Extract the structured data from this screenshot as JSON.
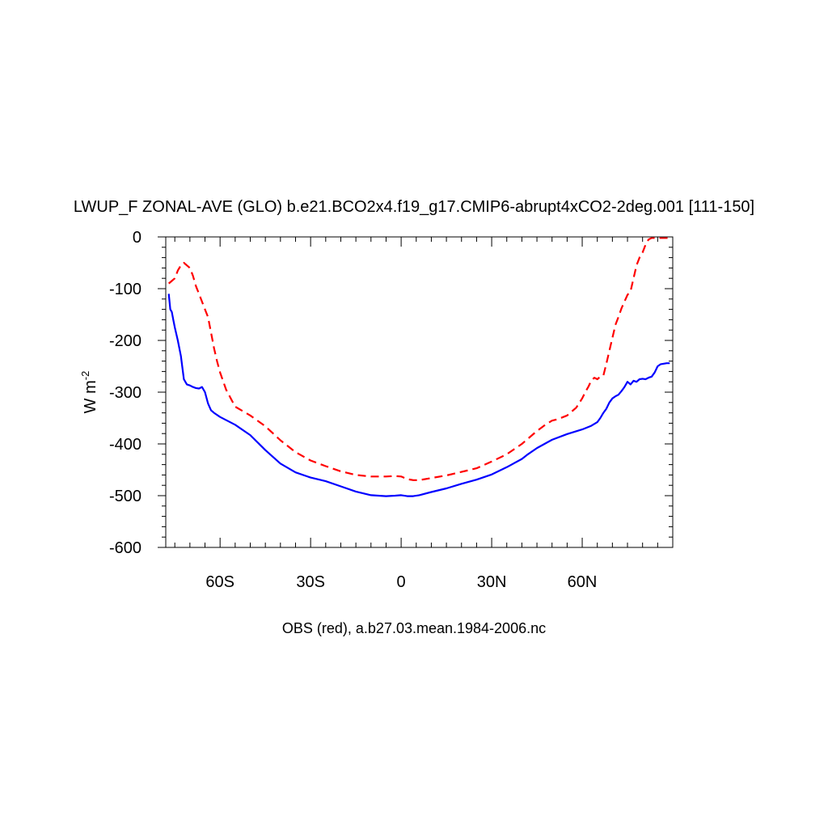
{
  "chart_data": {
    "type": "line",
    "title": "LWUP_F ZONAL-AVE (GLO) b.e21.BCO2x4.f19_g17.CMIP6-abrupt4xCO2-2deg.001 [111-150]",
    "ylabel": "W m",
    "ylabel_sup": "-2",
    "xlabel": "",
    "caption": "OBS (red), a.b27.03.mean.1984-2006.nc",
    "xlim": [
      -78,
      90
    ],
    "ylim": [
      -600,
      0
    ],
    "grid": false,
    "x_ticks": [
      {
        "value": -60,
        "label": "60S"
      },
      {
        "value": -30,
        "label": "30S"
      },
      {
        "value": 0,
        "label": "0"
      },
      {
        "value": 30,
        "label": "30N"
      },
      {
        "value": 60,
        "label": "60N"
      }
    ],
    "y_ticks": [
      {
        "value": 0,
        "label": "0"
      },
      {
        "value": -100,
        "label": "-100"
      },
      {
        "value": -200,
        "label": "-200"
      },
      {
        "value": -300,
        "label": "-300"
      },
      {
        "value": -400,
        "label": "-400"
      },
      {
        "value": -500,
        "label": "-500"
      },
      {
        "value": -600,
        "label": "-600"
      }
    ],
    "series": [
      {
        "color": "#0000ff",
        "dash": "solid",
        "x": [
          -77,
          -76.5,
          -76,
          -75.5,
          -75,
          -74,
          -73,
          -72,
          -71,
          -70,
          -69,
          -68,
          -67,
          -66,
          -65,
          -64,
          -63,
          -62,
          -60,
          -55,
          -50,
          -45,
          -40,
          -35,
          -30,
          -25,
          -20,
          -15,
          -10,
          -5,
          -2,
          0,
          2,
          4,
          6,
          10,
          15,
          20,
          25,
          30,
          35,
          40,
          42,
          45,
          50,
          55,
          60,
          63,
          65,
          66,
          67,
          68,
          69,
          70,
          71,
          72,
          73,
          74,
          75,
          76,
          77,
          78,
          79,
          80,
          81,
          82,
          83,
          84,
          85,
          86,
          87,
          88,
          89
        ],
        "y": [
          -110,
          -140,
          -145,
          -160,
          -175,
          -200,
          -230,
          -275,
          -285,
          -287,
          -290,
          -292,
          -293,
          -290,
          -300,
          -322,
          -335,
          -340,
          -348,
          -363,
          -383,
          -412,
          -438,
          -455,
          -465,
          -472,
          -482,
          -492,
          -499,
          -501,
          -500,
          -499,
          -501,
          -501,
          -499,
          -493,
          -486,
          -477,
          -469,
          -459,
          -445,
          -429,
          -420,
          -408,
          -392,
          -381,
          -372,
          -365,
          -358,
          -350,
          -340,
          -332,
          -320,
          -312,
          -308,
          -305,
          -298,
          -290,
          -280,
          -285,
          -278,
          -280,
          -275,
          -274,
          -275,
          -272,
          -270,
          -262,
          -250,
          -246,
          -245,
          -244,
          -244
        ]
      },
      {
        "color": "#ff0000",
        "dash": "dashed",
        "x": [
          -77,
          -76,
          -75,
          -74,
          -73,
          -72,
          -71,
          -70,
          -69,
          -68,
          -67,
          -66,
          -65,
          -64,
          -63,
          -62,
          -61,
          -60,
          -58,
          -55,
          -50,
          -45,
          -40,
          -35,
          -30,
          -25,
          -20,
          -15,
          -10,
          -5,
          -2,
          0,
          2,
          4,
          6,
          10,
          15,
          20,
          25,
          30,
          35,
          40,
          45,
          48,
          50,
          52,
          55,
          58,
          60,
          61,
          62,
          63,
          64,
          65,
          66,
          67,
          68,
          69,
          70,
          71,
          72,
          73,
          74,
          75,
          76,
          77,
          78,
          79,
          80,
          81,
          82,
          83,
          84,
          85,
          86,
          87,
          88,
          89
        ],
        "y": [
          -90,
          -85,
          -80,
          -65,
          -55,
          -50,
          -55,
          -60,
          -75,
          -95,
          -110,
          -125,
          -140,
          -155,
          -185,
          -215,
          -240,
          -262,
          -295,
          -328,
          -345,
          -366,
          -393,
          -416,
          -432,
          -443,
          -453,
          -460,
          -463,
          -463,
          -462,
          -463,
          -468,
          -470,
          -470,
          -466,
          -461,
          -454,
          -447,
          -434,
          -420,
          -400,
          -375,
          -362,
          -355,
          -352,
          -345,
          -330,
          -312,
          -300,
          -290,
          -278,
          -272,
          -275,
          -270,
          -268,
          -245,
          -220,
          -195,
          -170,
          -155,
          -138,
          -125,
          -112,
          -105,
          -80,
          -55,
          -40,
          -30,
          -15,
          -5,
          -2,
          -2,
          -2,
          -2,
          -2,
          -2,
          -2
        ]
      }
    ]
  }
}
